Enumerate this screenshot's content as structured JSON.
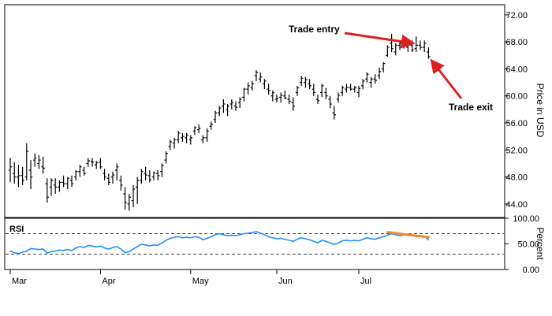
{
  "chart_data": [
    {
      "type": "ohlc",
      "ylabel": "Price in USD",
      "ylim": [
        42.0,
        73.5
      ],
      "yticks": [
        "72.00",
        "68.00",
        "64.00",
        "60.00",
        "56.00",
        "52.00",
        "48.00",
        "44.00"
      ],
      "ytick_values": [
        72,
        68,
        64,
        60,
        56,
        52,
        48,
        44
      ],
      "xticks": [
        "Mar",
        "Apr",
        "May",
        "Jun",
        "Jul"
      ],
      "xtick_positions": [
        0,
        22,
        44,
        65,
        85
      ],
      "grid": false,
      "series": [
        {
          "values": [
            [
              49.0,
              50.8,
              47.2,
              49.5
            ],
            [
              48.5,
              50.2,
              47.0,
              48.0
            ],
            [
              48.0,
              49.8,
              46.5,
              48.2
            ],
            [
              48.2,
              49.5,
              46.8,
              47.5
            ],
            [
              48.0,
              53.0,
              47.5,
              51.8
            ],
            [
              49.0,
              50.5,
              46.2,
              48.0
            ],
            [
              50.5,
              51.5,
              49.5,
              50.8
            ],
            [
              50.0,
              51.2,
              49.2,
              50.5
            ],
            [
              49.5,
              51.0,
              48.5,
              49.3
            ],
            [
              47.0,
              47.8,
              44.2,
              45.0
            ],
            [
              46.5,
              47.8,
              45.2,
              47.5
            ],
            [
              46.8,
              47.8,
              45.5,
              46.5
            ],
            [
              46.5,
              47.5,
              45.8,
              47.2
            ],
            [
              47.2,
              48.2,
              46.5,
              47.0
            ],
            [
              47.0,
              48.0,
              46.2,
              47.8
            ],
            [
              47.5,
              48.2,
              46.5,
              47.0
            ],
            [
              48.0,
              49.0,
              47.5,
              48.8
            ],
            [
              48.8,
              49.8,
              48.0,
              49.5
            ],
            [
              49.0,
              49.5,
              48.2,
              48.5
            ],
            [
              50.0,
              50.8,
              49.5,
              50.4
            ],
            [
              50.3,
              50.8,
              49.5,
              50.2
            ],
            [
              49.8,
              50.4,
              49.2,
              50.1
            ],
            [
              50.2,
              50.8,
              49.2,
              49.5
            ],
            [
              48.5,
              49.2,
              47.5,
              48.0
            ],
            [
              47.8,
              48.5,
              46.8,
              47.2
            ],
            [
              48.0,
              48.8,
              47.0,
              48.3
            ],
            [
              49.0,
              50.0,
              47.5,
              49.5
            ],
            [
              47.5,
              48.2,
              46.0,
              46.8
            ],
            [
              45.5,
              46.5,
              43.2,
              44.2
            ],
            [
              44.0,
              45.5,
              43.0,
              45.0
            ],
            [
              44.5,
              46.8,
              43.5,
              46.2
            ],
            [
              46.5,
              48.0,
              44.0,
              47.5
            ],
            [
              47.5,
              49.2,
              47.0,
              48.8
            ],
            [
              48.5,
              49.5,
              47.5,
              48.3
            ],
            [
              48.2,
              49.0,
              47.2,
              47.6
            ],
            [
              48.0,
              48.8,
              47.5,
              48.6
            ],
            [
              48.5,
              49.0,
              47.5,
              48.2
            ],
            [
              48.8,
              50.0,
              48.0,
              49.7
            ],
            [
              50.5,
              51.8,
              50.0,
              51.5
            ],
            [
              52.5,
              53.5,
              52.0,
              53.2
            ],
            [
              53.0,
              53.8,
              52.2,
              53.5
            ],
            [
              53.5,
              54.8,
              53.0,
              54.5
            ],
            [
              53.8,
              54.5,
              53.2,
              54.0
            ],
            [
              53.8,
              54.5,
              53.0,
              54.2
            ],
            [
              53.5,
              54.2,
              52.8,
              53.8
            ],
            [
              54.8,
              55.5,
              54.2,
              55.3
            ],
            [
              55.0,
              55.8,
              54.5,
              55.2
            ],
            [
              53.5,
              54.2,
              53.0,
              53.8
            ],
            [
              53.8,
              55.2,
              53.2,
              54.8
            ],
            [
              55.5,
              56.2,
              55.0,
              55.8
            ],
            [
              56.5,
              57.8,
              56.0,
              57.5
            ],
            [
              57.5,
              58.5,
              57.0,
              58.2
            ],
            [
              58.5,
              59.5,
              57.5,
              58.8
            ],
            [
              58.0,
              58.8,
              57.0,
              58.5
            ],
            [
              58.8,
              59.5,
              58.0,
              59.0
            ],
            [
              58.5,
              59.2,
              57.8,
              58.3
            ],
            [
              59.0,
              59.8,
              58.2,
              59.5
            ],
            [
              59.8,
              61.2,
              59.2,
              61.0
            ],
            [
              61.0,
              62.0,
              60.2,
              61.5
            ],
            [
              61.2,
              62.2,
              60.8,
              61.8
            ],
            [
              63.0,
              63.8,
              62.2,
              63.5
            ],
            [
              62.5,
              63.5,
              62.0,
              62.8
            ],
            [
              61.8,
              62.5,
              61.0,
              62.2
            ],
            [
              61.0,
              61.8,
              60.2,
              60.8
            ],
            [
              60.0,
              60.8,
              59.2,
              60.5
            ],
            [
              59.5,
              60.2,
              59.0,
              59.6
            ],
            [
              59.8,
              60.5,
              59.0,
              60.1
            ],
            [
              60.0,
              60.8,
              59.5,
              59.7
            ],
            [
              59.5,
              60.2,
              58.8,
              59.2
            ],
            [
              59.0,
              59.8,
              57.8,
              58.5
            ],
            [
              60.5,
              61.5,
              60.0,
              61.2
            ],
            [
              62.0,
              63.0,
              61.5,
              62.6
            ],
            [
              62.0,
              62.8,
              61.2,
              62.4
            ],
            [
              61.8,
              62.5,
              61.0,
              61.5
            ],
            [
              61.0,
              61.8,
              60.0,
              60.5
            ],
            [
              59.5,
              60.2,
              58.8,
              59.3
            ],
            [
              60.5,
              61.8,
              59.8,
              61.5
            ],
            [
              60.5,
              61.2,
              59.5,
              60.0
            ],
            [
              59.5,
              60.0,
              58.2,
              58.8
            ],
            [
              57.5,
              58.5,
              56.5,
              57.2
            ],
            [
              59.5,
              60.5,
              59.0,
              60.1
            ],
            [
              60.5,
              61.5,
              60.0,
              61.2
            ],
            [
              61.0,
              61.8,
              60.5,
              61.3
            ],
            [
              61.2,
              61.8,
              60.8,
              61.0
            ],
            [
              61.0,
              61.5,
              60.5,
              61.2
            ],
            [
              60.5,
              61.5,
              59.8,
              61.1
            ],
            [
              61.5,
              62.5,
              61.0,
              62.2
            ],
            [
              62.5,
              63.5,
              62.0,
              63.2
            ],
            [
              62.0,
              62.8,
              61.2,
              62.5
            ],
            [
              62.5,
              63.2,
              61.8,
              62.3
            ],
            [
              63.0,
              64.2,
              62.5,
              63.6
            ],
            [
              64.0,
              65.0,
              63.5,
              64.8
            ],
            [
              66.0,
              67.5,
              65.8,
              67.2
            ],
            [
              67.8,
              69.2,
              66.5,
              67.0
            ],
            [
              66.5,
              67.8,
              66.0,
              67.5
            ],
            [
              67.5,
              68.2,
              66.8,
              67.8
            ],
            [
              67.8,
              68.5,
              67.0,
              67.5
            ],
            [
              67.2,
              68.2,
              66.5,
              67.9
            ],
            [
              67.5,
              68.2,
              66.5,
              66.8
            ],
            [
              67.0,
              68.8,
              66.5,
              67.5
            ],
            [
              67.5,
              68.2,
              66.8,
              67.2
            ],
            [
              67.2,
              68.2,
              66.5,
              67.8
            ],
            [
              66.5,
              67.2,
              65.5,
              65.8
            ]
          ]
        }
      ],
      "annotations": [
        {
          "text": "Trade entry",
          "bar": 99,
          "price": 67.8
        },
        {
          "text": "Trade exit",
          "bar": 102,
          "price": 65.8
        }
      ]
    },
    {
      "type": "line",
      "title": "RSI",
      "ylabel": "Percent",
      "ylim": [
        0,
        100
      ],
      "yticks": [
        "100.00",
        "50.00",
        "0.00"
      ],
      "ytick_values": [
        100,
        50,
        0
      ],
      "hlines": [
        70,
        30
      ],
      "series": [
        {
          "color": "#1e90ff",
          "values": [
            36,
            33,
            31,
            34,
            36,
            41,
            40,
            39,
            40,
            32,
            35,
            36,
            38,
            37,
            39,
            37,
            42,
            45,
            43,
            47,
            46,
            44,
            46,
            42,
            40,
            43,
            45,
            40,
            33,
            35,
            40,
            45,
            49,
            48,
            46,
            48,
            47,
            52,
            57,
            61,
            63,
            64,
            62,
            63,
            62,
            64,
            63,
            58,
            61,
            64,
            68,
            70,
            68,
            66,
            67,
            66,
            68,
            70,
            71,
            72,
            74,
            71,
            68,
            64,
            62,
            60,
            61,
            59,
            57,
            55,
            59,
            62,
            60,
            58,
            55,
            52,
            57,
            55,
            52,
            49,
            52,
            56,
            57,
            56,
            57,
            56,
            59,
            62,
            60,
            59,
            62,
            64,
            67,
            70,
            68,
            66,
            68,
            67,
            68,
            64,
            66,
            65,
            58
          ]
        },
        {
          "color": "#f08a2a",
          "values": [
            73,
            63
          ],
          "x": [
            92,
            102
          ]
        }
      ]
    }
  ]
}
